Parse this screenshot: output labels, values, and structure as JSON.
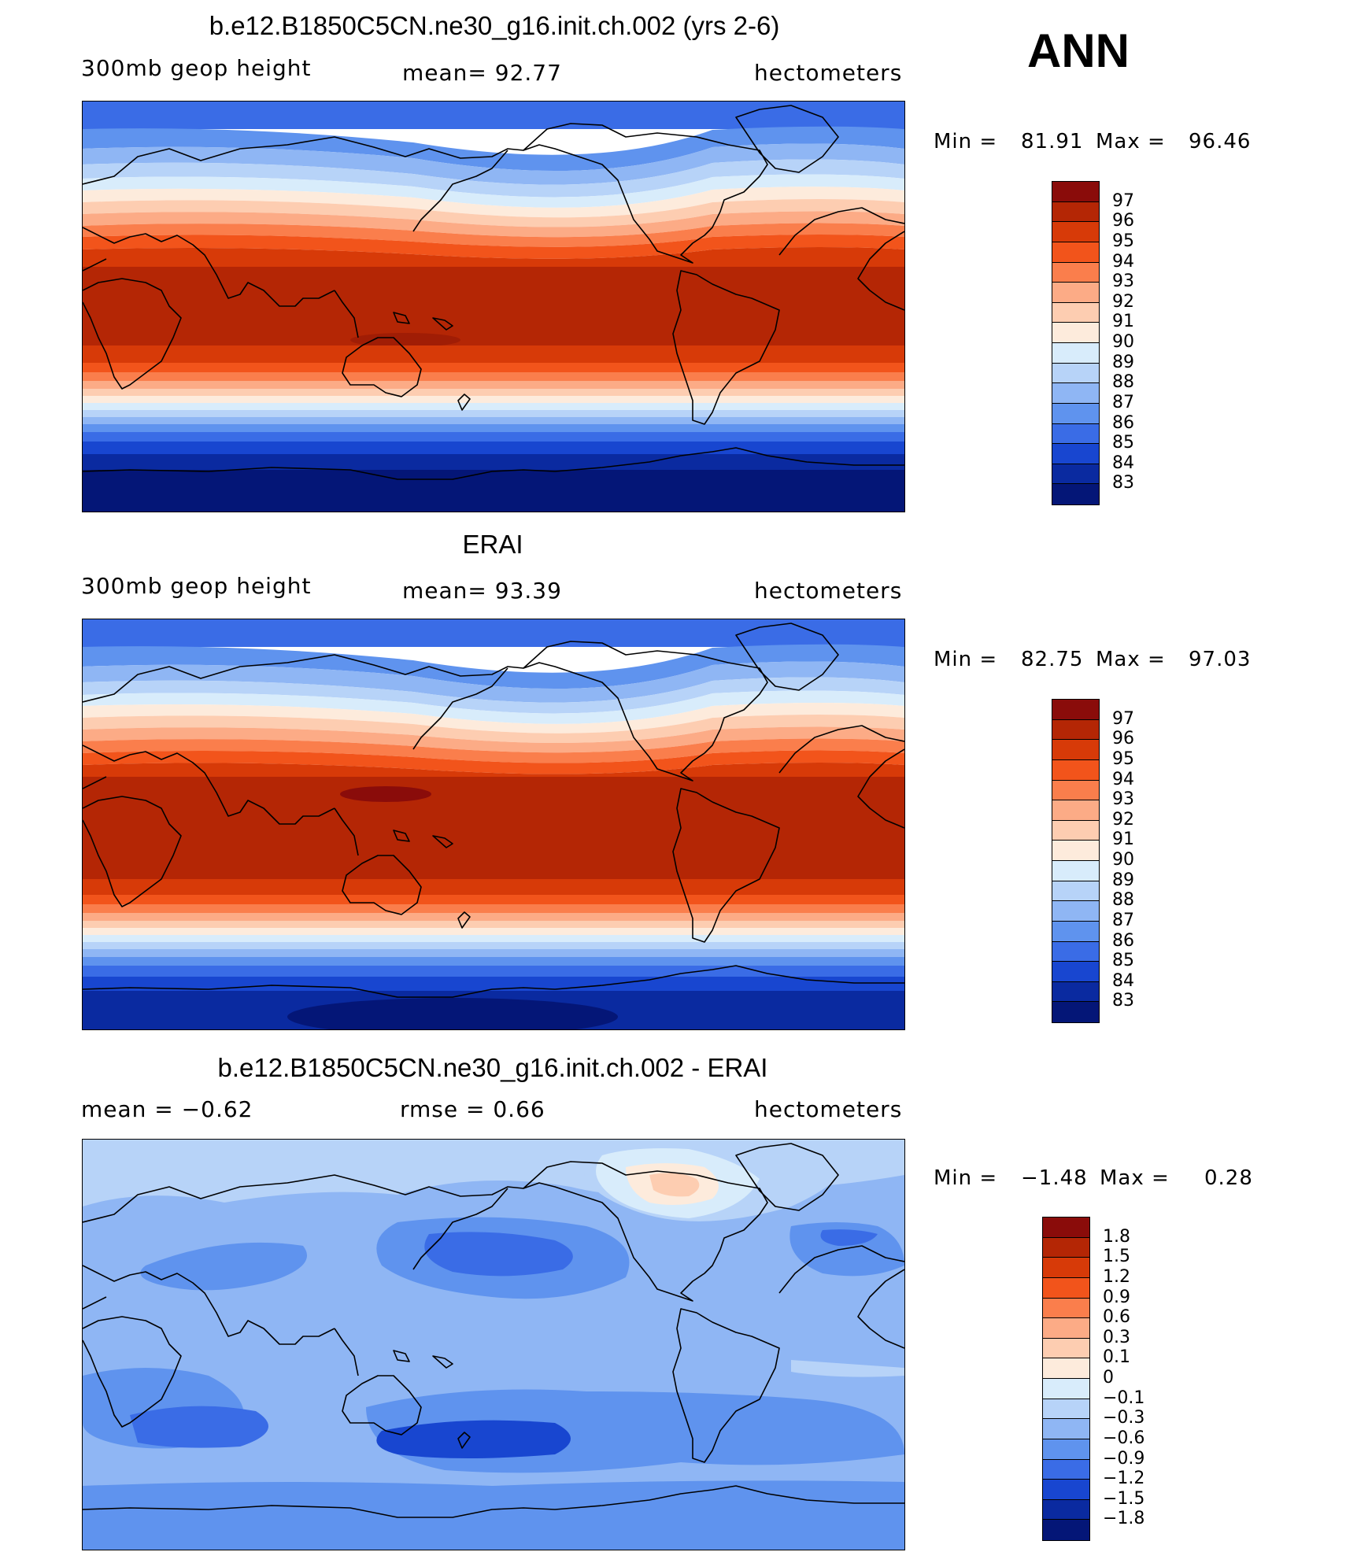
{
  "season": "ANN",
  "panels": [
    {
      "title": "b.e12.B1850C5CN.ne30_g16.init.ch.002 (yrs 2-6)",
      "left_label": "300mb  geop  height",
      "center_label": "mean=   92.77",
      "right_label": "hectometers",
      "min_label": "Min  =",
      "min_value": "81.91",
      "max_label": "Max  =",
      "max_value": "96.46",
      "colorbar": {
        "labels": [
          "97",
          "96",
          "95",
          "94",
          "93",
          "92",
          "91",
          "90",
          "89",
          "88",
          "87",
          "86",
          "85",
          "84",
          "83"
        ],
        "colors": [
          "#8a0c0a",
          "#b42605",
          "#d73a08",
          "#f2541b",
          "#fa7e4c",
          "#fcab86",
          "#fdcdb1",
          "#fdebdc",
          "#d8ecfb",
          "#b7d3f8",
          "#8fb6f4",
          "#5f93ee",
          "#3a6ce6",
          "#1846d0",
          "#0a2aa0",
          "#041677"
        ]
      }
    },
    {
      "title": "ERAI",
      "left_label": "300mb  geop  height",
      "center_label": "mean=   93.39",
      "right_label": "hectometers",
      "min_label": "Min  =",
      "min_value": "82.75",
      "max_label": "Max  =",
      "max_value": "97.03",
      "colorbar": {
        "labels": [
          "97",
          "96",
          "95",
          "94",
          "93",
          "92",
          "91",
          "90",
          "89",
          "88",
          "87",
          "86",
          "85",
          "84",
          "83"
        ],
        "colors": [
          "#8a0c0a",
          "#b42605",
          "#d73a08",
          "#f2541b",
          "#fa7e4c",
          "#fcab86",
          "#fdcdb1",
          "#fdebdc",
          "#d8ecfb",
          "#b7d3f8",
          "#8fb6f4",
          "#5f93ee",
          "#3a6ce6",
          "#1846d0",
          "#0a2aa0",
          "#041677"
        ]
      }
    },
    {
      "title": "b.e12.B1850C5CN.ne30_g16.init.ch.002 - ERAI",
      "left_label": "mean  =    −0.62",
      "center_label": "rmse  =     0.66",
      "right_label": "hectometers",
      "min_label": "Min  =",
      "min_value": "−1.48",
      "max_label": "Max  =",
      "max_value": "0.28",
      "colorbar": {
        "labels": [
          "1.8",
          "1.5",
          "1.2",
          "0.9",
          "0.6",
          "0.3",
          "0.1",
          "0",
          "−0.1",
          "−0.3",
          "−0.6",
          "−0.9",
          "−1.2",
          "−1.5",
          "−1.8"
        ],
        "colors": [
          "#8a0c0a",
          "#b42605",
          "#d73a08",
          "#f2541b",
          "#fa7e4c",
          "#fcab86",
          "#fdcdb1",
          "#fdebdc",
          "#d8ecfb",
          "#b7d3f8",
          "#8fb6f4",
          "#5f93ee",
          "#3a6ce6",
          "#1846d0",
          "#0a2aa0",
          "#041677"
        ]
      }
    }
  ]
}
